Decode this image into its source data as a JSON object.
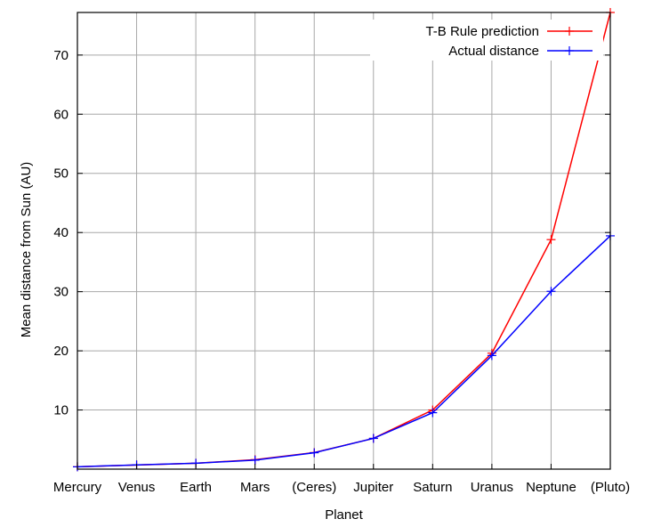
{
  "chart_data": {
    "type": "line",
    "title": "",
    "xlabel": "Planet",
    "ylabel": "Mean distance from Sun (AU)",
    "categories": [
      "Mercury",
      "Venus",
      "Earth",
      "Mars",
      "(Ceres)",
      "Jupiter",
      "Saturn",
      "Uranus",
      "Neptune",
      "(Pluto)"
    ],
    "ylim": [
      0,
      77.2
    ],
    "yticks": [
      10,
      20,
      30,
      40,
      50,
      60,
      70
    ],
    "grid": true,
    "legend_position": "top-right",
    "series": [
      {
        "name": "T-B Rule prediction",
        "color": "#ff0000",
        "values": [
          0.4,
          0.7,
          1.0,
          1.6,
          2.8,
          5.2,
          10.0,
          19.6,
          38.8,
          77.2
        ]
      },
      {
        "name": "Actual distance",
        "color": "#0000ff",
        "values": [
          0.39,
          0.72,
          1.0,
          1.52,
          2.77,
          5.2,
          9.54,
          19.2,
          30.06,
          39.44
        ]
      }
    ]
  }
}
